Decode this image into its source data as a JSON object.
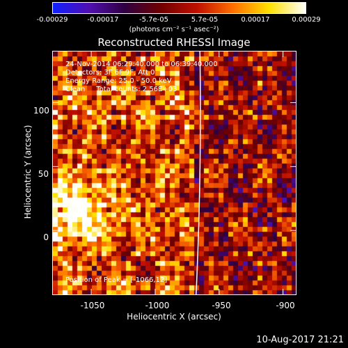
{
  "colorbar": {
    "tick_labels": [
      "-0.00029",
      "-0.00017",
      "-5.7e-05",
      "5.7e-05",
      "0.00017",
      "0.00029"
    ],
    "units_label": "(photons cm⁻² s⁻¹ asec⁻²)",
    "colors": [
      "#1020ff",
      "#5010b0",
      "#300040",
      "#700000",
      "#c01000",
      "#ff7000",
      "#ffe000",
      "#ffffff"
    ]
  },
  "plot": {
    "title": "Reconstructed RHESSI Image",
    "annotations": {
      "time_range": "24-Nov-2014 06:29:40.000 to 06:39:40.000",
      "detectors": "Detectors: 3F 6F 9F, Att 0",
      "energy_range": "Energy Range: 25.0 - 50.0 keV",
      "clean_counts": "Clean     Total counts: 2.56E+03",
      "peak_position": "Position of Peak = [-1066,12]"
    },
    "xlabel": "Heliocentric X (arcsec)",
    "ylabel": "Heliocentric Y (arcsec)",
    "xticks": [
      "-1050",
      "-1000",
      "-950",
      "-900"
    ],
    "yticks": [
      "100",
      "50",
      "0"
    ]
  },
  "footer": {
    "date": "10-Aug-2017 21:21"
  },
  "chart_data": {
    "type": "heatmap",
    "title": "Reconstructed RHESSI Image",
    "xlabel": "Heliocentric X (arcsec)",
    "ylabel": "Heliocentric Y (arcsec)",
    "xlim": [
      -1080,
      -890
    ],
    "ylim": [
      -50,
      140
    ],
    "color_range": [
      -0.00029,
      0.00029
    ],
    "peak": [
      -1066,
      12
    ],
    "limb_x_approx": -968
  }
}
